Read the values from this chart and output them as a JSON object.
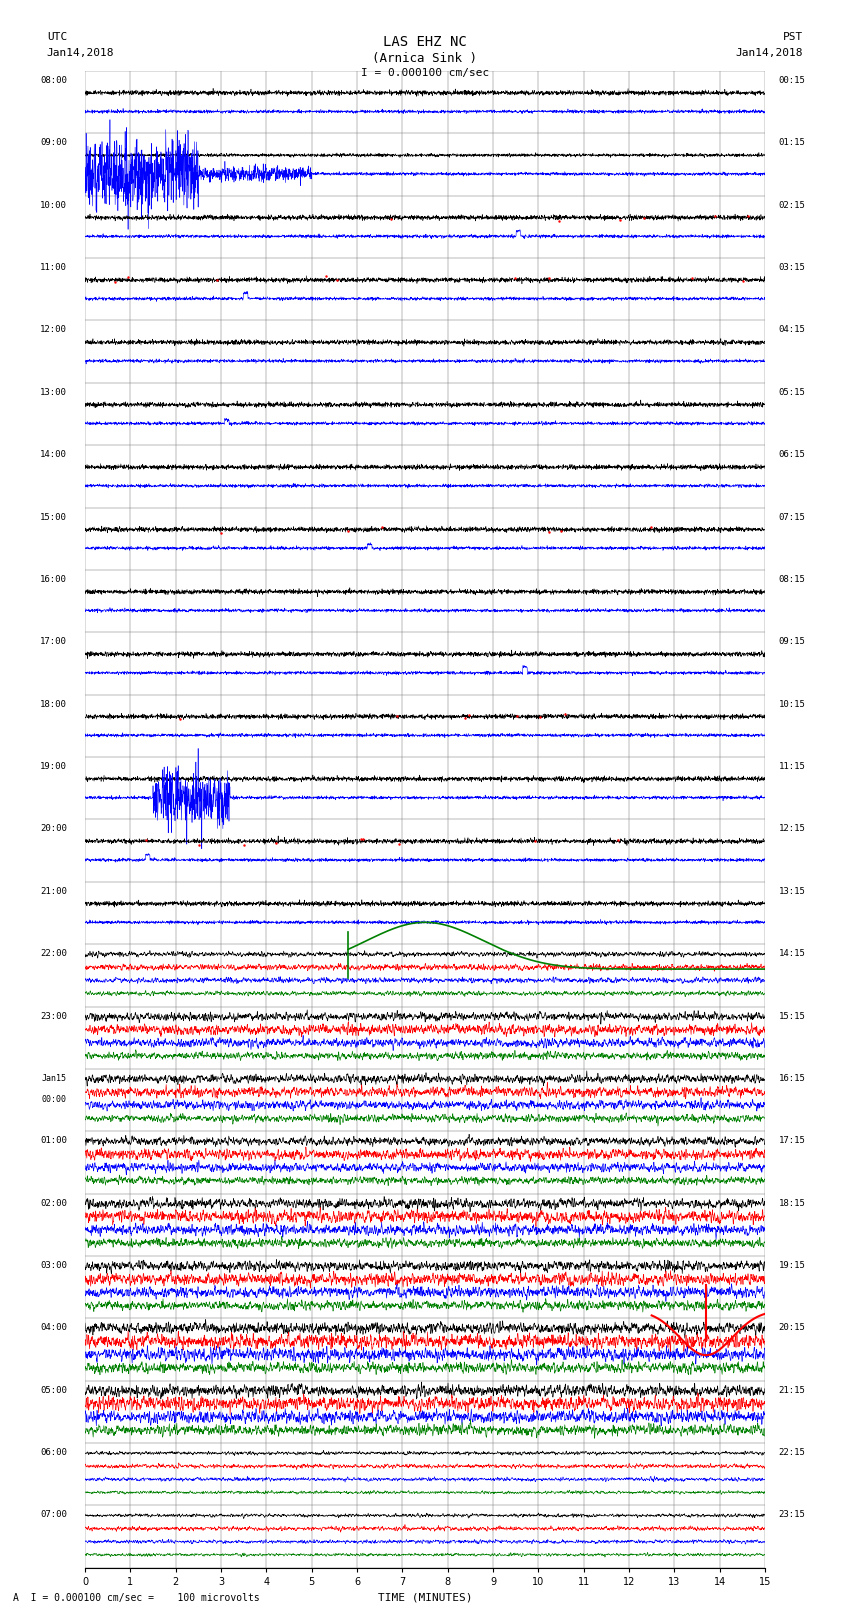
{
  "title_line1": "LAS EHZ NC",
  "title_line2": "(Arnica Sink )",
  "scale_label": "I = 0.000100 cm/sec",
  "left_date": "Jan14,2018",
  "right_date": "Jan14,2018",
  "left_tz": "UTC",
  "right_tz": "PST",
  "xlabel": "TIME (MINUTES)",
  "footer": "A  I = 0.000100 cm/sec =    100 microvolts",
  "bg_color": "#ffffff",
  "x_min": 0,
  "x_max": 15,
  "seed": 42
}
